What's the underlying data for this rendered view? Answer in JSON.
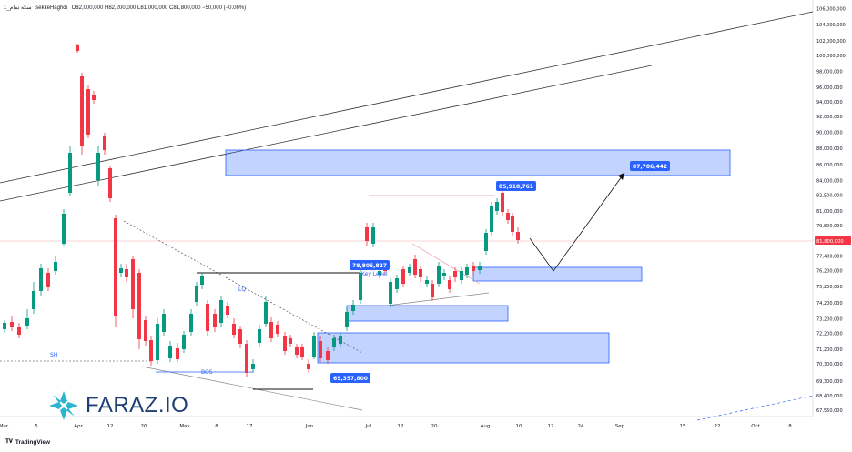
{
  "header": {
    "symbol": "سکه تمام_1",
    "source": "sekkeHaghdi",
    "ohlc": "O82,000,000 H82,200,000 L81,000,000 C81,800,000 −50,000 (−0.06%)"
  },
  "footer": {
    "brand": "TradingView",
    "watermark": "FARAZ.IO"
  },
  "colors": {
    "up": "#089981",
    "down": "#f23645",
    "zone_fill": "#2962ff",
    "zone_edge": "#2962ff",
    "label_bg": "#2962ff",
    "price_tag": "#f23645"
  },
  "chart_data": {
    "type": "candlestick",
    "y_ticks": [
      "106,000,000",
      "104,000,000",
      "102,000,000",
      "100,000,000",
      "98,000,000",
      "96,000,000",
      "94,000,000",
      "92,000,000",
      "90,000,000",
      "88,000,000",
      "86,000,000",
      "84,000,000",
      "82,500,000",
      "81,000,000",
      "79,800,000",
      "78,600,000",
      "77,400,000",
      "76,200,000",
      "75,200,000",
      "74,200,000",
      "73,200,000",
      "72,200,000",
      "71,200,000",
      "70,300,000",
      "69,300,000",
      "68,400,000",
      "67,550,000"
    ],
    "last_price": "81,800,000",
    "x_ticks": [
      "Mar",
      "5",
      "Apr",
      "12",
      "20",
      "May",
      "8",
      "17",
      "Jun",
      "Jul",
      "12",
      "20",
      "Aug",
      "10",
      "17",
      "24",
      "Sep",
      "15",
      "22",
      "Oct",
      "8"
    ],
    "annotations": {
      "labels": [
        "85,918,761",
        "87,786,442",
        "78,805,827",
        "69,357,800"
      ],
      "texts": [
        "LQ",
        "BOS",
        "SH",
        "Key Level"
      ]
    }
  }
}
